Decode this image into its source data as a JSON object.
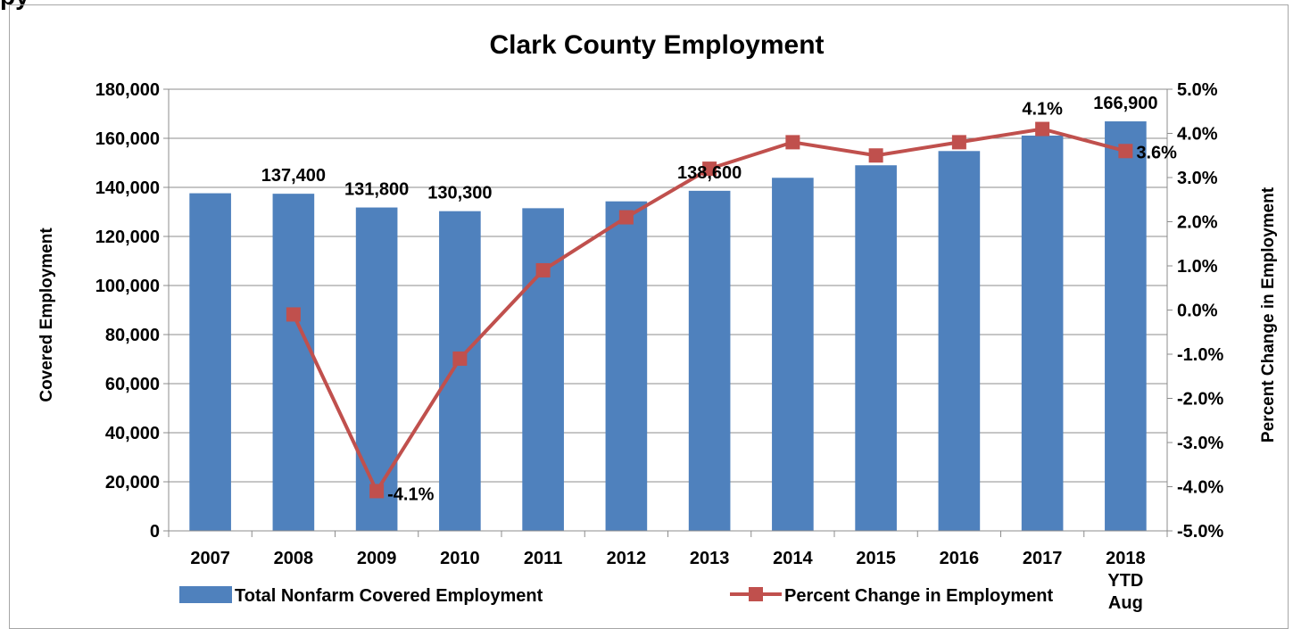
{
  "page_header_fragment": "py",
  "chart_data": {
    "type": "bar",
    "title": "Clark County Employment",
    "categories": [
      "2007",
      "2008",
      "2009",
      "2010",
      "2011",
      "2012",
      "2013",
      "2014",
      "2015",
      "2016",
      "2017",
      "2018 YTD Aug"
    ],
    "category_lines": [
      [
        "2007"
      ],
      [
        "2008"
      ],
      [
        "2009"
      ],
      [
        "2010"
      ],
      [
        "2011"
      ],
      [
        "2012"
      ],
      [
        "2013"
      ],
      [
        "2014"
      ],
      [
        "2015"
      ],
      [
        "2016"
      ],
      [
        "2017"
      ],
      [
        "2018",
        "YTD",
        "Aug"
      ]
    ],
    "ylabel": "Covered Employment",
    "y2label": "Percent Change in Employment",
    "ylim": [
      0,
      180000
    ],
    "y2lim": [
      -5.0,
      5.0
    ],
    "yticks": [
      "0",
      "20,000",
      "40,000",
      "60,000",
      "80,000",
      "100,000",
      "120,000",
      "140,000",
      "160,000",
      "180,000"
    ],
    "y2ticks": [
      "-5.0%",
      "-4.0%",
      "-3.0%",
      "-2.0%",
      "-1.0%",
      "0.0%",
      "1.0%",
      "2.0%",
      "3.0%",
      "4.0%",
      "5.0%"
    ],
    "legend_position": "bottom",
    "series": [
      {
        "name": "Total Nonfarm Covered Employment",
        "type": "bar",
        "axis": "left",
        "color": "#4f81bd",
        "values": [
          137600,
          137400,
          131800,
          130300,
          131500,
          134300,
          138600,
          143900,
          149000,
          154800,
          161100,
          166900
        ],
        "labels": [
          "",
          "137,400",
          "131,800",
          "130,300",
          "",
          "",
          "138,600",
          "",
          "",
          "",
          "",
          "166,900"
        ]
      },
      {
        "name": "Percent Change in Employment",
        "type": "line",
        "axis": "right",
        "color": "#c0504d",
        "values": [
          null,
          -0.1,
          -4.1,
          -1.1,
          0.9,
          2.1,
          3.2,
          3.8,
          3.5,
          3.8,
          4.1,
          3.6
        ],
        "labels": [
          "",
          "",
          "-4.1%",
          "",
          "",
          "",
          "",
          "",
          "",
          "",
          "4.1%",
          "3.6%"
        ]
      }
    ]
  }
}
